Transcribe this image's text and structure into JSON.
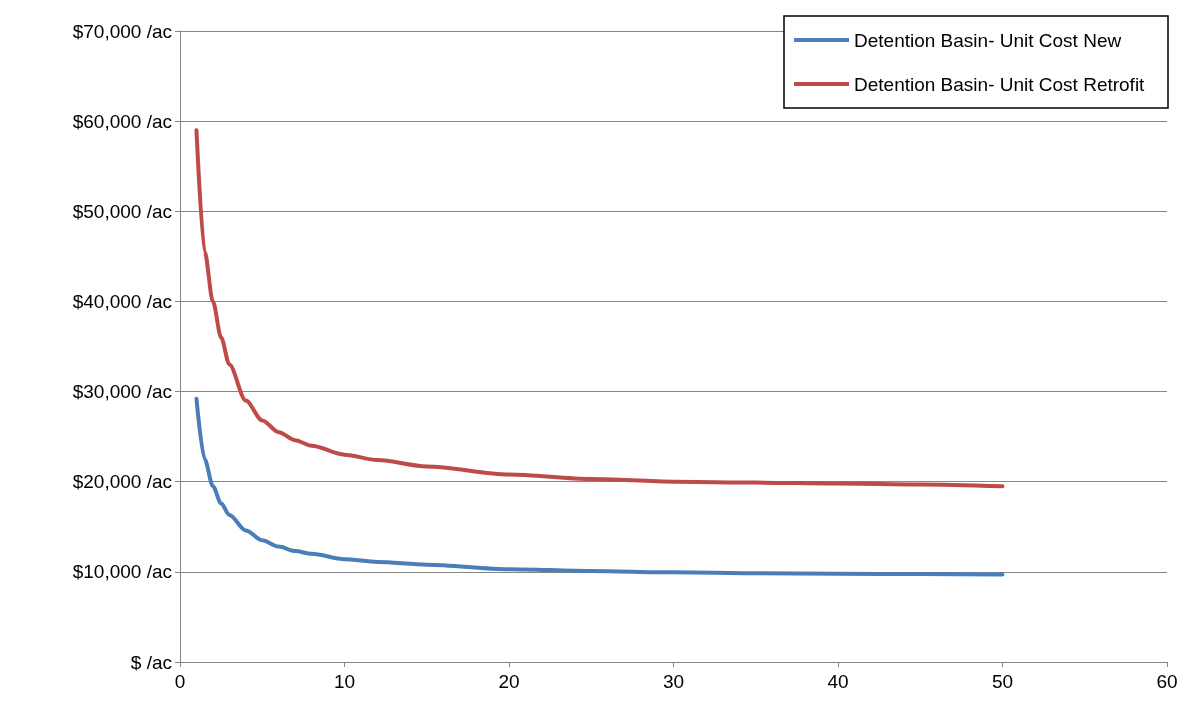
{
  "chart_data": {
    "type": "line",
    "xlim": [
      0,
      60
    ],
    "xticks": [
      0,
      10,
      20,
      30,
      40,
      50,
      60
    ],
    "ylim": [
      0,
      70000
    ],
    "yticks": [
      {
        "value": 0,
        "label": "$ /ac"
      },
      {
        "value": 10000,
        "label": "$10,000 /ac"
      },
      {
        "value": 20000,
        "label": "$20,000 /ac"
      },
      {
        "value": 30000,
        "label": "$30,000 /ac"
      },
      {
        "value": 40000,
        "label": "$40,000 /ac"
      },
      {
        "value": 50000,
        "label": "$50,000 /ac"
      },
      {
        "value": 60000,
        "label": "$60,000 /ac"
      },
      {
        "value": 70000,
        "label": "$70,000 /ac"
      }
    ],
    "grid": "y",
    "legend": "top right",
    "marker": "none",
    "line_style": "solid",
    "x": [
      1,
      1.5,
      2,
      2.5,
      3,
      4,
      5,
      6,
      7,
      8,
      10,
      12,
      15,
      20,
      25,
      30,
      35,
      40,
      45,
      50
    ],
    "series": [
      {
        "name": "Detention Basin- Unit Cost New",
        "color": "#4a7ebb",
        "values": [
          29200,
          22500,
          19500,
          17600,
          16300,
          14600,
          13500,
          12800,
          12300,
          12000,
          11400,
          11100,
          10800,
          10300,
          10100,
          9950,
          9850,
          9800,
          9750,
          9700
        ]
      },
      {
        "name": "Detention Basin- Unit Cost Retrofit",
        "color": "#be4b48",
        "values": [
          59000,
          45500,
          40000,
          36000,
          33000,
          29000,
          26800,
          25500,
          24600,
          24000,
          23000,
          22400,
          21700,
          20800,
          20300,
          20000,
          19900,
          19800,
          19700,
          19500
        ]
      }
    ]
  }
}
